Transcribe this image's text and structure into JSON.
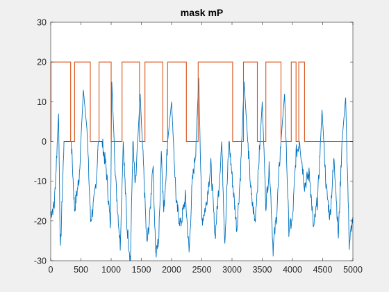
{
  "chart_data": {
    "type": "line",
    "title": "mask mP",
    "xlabel": "",
    "ylabel": "",
    "xlim": [
      0,
      5000
    ],
    "ylim": [
      -30,
      30
    ],
    "xticks": [
      0,
      500,
      1000,
      1500,
      2000,
      2500,
      3000,
      3500,
      4000,
      4500,
      5000
    ],
    "yticks": [
      -30,
      -20,
      -10,
      0,
      10,
      20,
      30
    ],
    "grid": false,
    "legend": "none",
    "series": [
      {
        "color": "#D95319",
        "kind": "mask",
        "low": 0,
        "high": 20,
        "high_intervals": [
          [
            5,
            330
          ],
          [
            395,
            655
          ],
          [
            800,
            1000
          ],
          [
            1180,
            1470
          ],
          [
            1560,
            1855
          ],
          [
            1935,
            2245
          ],
          [
            2440,
            3010
          ],
          [
            3190,
            3420
          ],
          [
            3560,
            3810
          ],
          [
            3980,
            4060
          ],
          [
            4105,
            4200
          ]
        ]
      },
      {
        "color": "#0072BD",
        "kind": "signal",
        "x": [
          0,
          60,
          130,
          160,
          220,
          290,
          340,
          395,
          470,
          540,
          600,
          660,
          720,
          760,
          790,
          850,
          920,
          990,
          1010,
          1080,
          1150,
          1200,
          1260,
          1320,
          1360,
          1400,
          1480,
          1540,
          1590,
          1640,
          1690,
          1740,
          1790,
          1830,
          1870,
          1935,
          2000,
          2080,
          2150,
          2230,
          2290,
          2340,
          2400,
          2450,
          2500,
          2570,
          2650,
          2720,
          2780,
          2830,
          2880,
          2950,
          3020,
          3080,
          3140,
          3200,
          3260,
          3320,
          3380,
          3430,
          3500,
          3560,
          3620,
          3680,
          3740,
          3800,
          3870,
          3940,
          4000,
          4060,
          4120,
          4200,
          4280,
          4350,
          4420,
          4490,
          4560,
          4620,
          4690,
          4760,
          4820,
          4880,
          4940,
          5000
        ],
        "y": [
          -18,
          -16,
          7,
          -28,
          0,
          0,
          0,
          -17,
          -9,
          13,
          3,
          -20,
          -15,
          -8,
          0,
          0,
          -7,
          -22,
          15,
          -11,
          -26,
          0,
          -21,
          -30,
          0,
          -12,
          12,
          -8,
          -26,
          -19,
          -5,
          -29,
          -24,
          -2,
          -18,
          0,
          10,
          -16,
          -21,
          -14,
          -28,
          -11,
          -2,
          16,
          -20,
          -16,
          -6,
          -24,
          -12,
          0,
          -25,
          0,
          -12,
          -22,
          -8,
          15,
          0,
          -14,
          -20,
          -9,
          10,
          -16,
          -6,
          -27,
          -18,
          -2,
          12,
          -22,
          -20,
          -3,
          0,
          -11,
          -8,
          -22,
          -14,
          8,
          -12,
          -19,
          -4,
          -24,
          0,
          11,
          -26,
          -19
        ]
      }
    ]
  }
}
